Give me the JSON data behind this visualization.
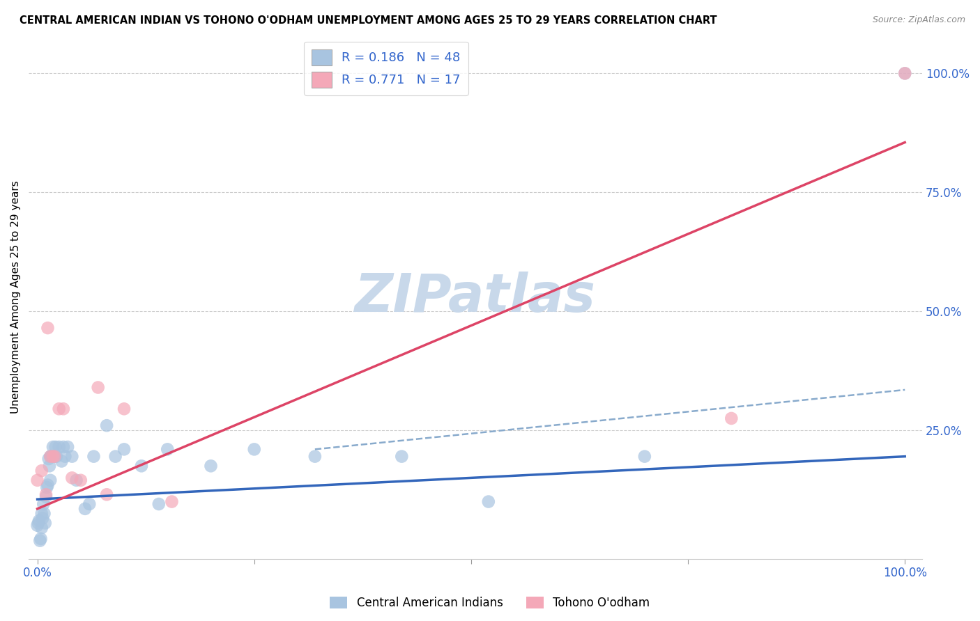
{
  "title": "CENTRAL AMERICAN INDIAN VS TOHONO O'ODHAM UNEMPLOYMENT AMONG AGES 25 TO 29 YEARS CORRELATION CHART",
  "source": "Source: ZipAtlas.com",
  "ylabel": "Unemployment Among Ages 25 to 29 years",
  "ytick_labels": [
    "25.0%",
    "50.0%",
    "75.0%",
    "100.0%"
  ],
  "ytick_values": [
    0.25,
    0.5,
    0.75,
    1.0
  ],
  "legend_label1": "Central American Indians",
  "legend_label2": "Tohono O'odham",
  "r1": "0.186",
  "n1": "48",
  "r2": "0.771",
  "n2": "17",
  "color_blue": "#A8C4E0",
  "color_pink": "#F4A8B8",
  "color_trend_blue": "#3366BB",
  "color_trend_pink": "#DD4466",
  "color_dash": "#88AACC",
  "watermark_color": "#C8D8EA",
  "blue_x": [
    0.0,
    0.001,
    0.002,
    0.003,
    0.004,
    0.005,
    0.005,
    0.006,
    0.007,
    0.008,
    0.009,
    0.01,
    0.011,
    0.012,
    0.013,
    0.014,
    0.015,
    0.015,
    0.016,
    0.017,
    0.018,
    0.019,
    0.02,
    0.021,
    0.022,
    0.025,
    0.028,
    0.03,
    0.032,
    0.035,
    0.04,
    0.045,
    0.055,
    0.06,
    0.065,
    0.08,
    0.09,
    0.1,
    0.12,
    0.14,
    0.15,
    0.2,
    0.25,
    0.32,
    0.42,
    0.52,
    0.7,
    1.0
  ],
  "blue_y": [
    0.05,
    0.055,
    0.06,
    0.018,
    0.022,
    0.045,
    0.075,
    0.065,
    0.095,
    0.075,
    0.055,
    0.11,
    0.13,
    0.135,
    0.19,
    0.175,
    0.145,
    0.195,
    0.195,
    0.195,
    0.215,
    0.195,
    0.195,
    0.215,
    0.195,
    0.215,
    0.185,
    0.215,
    0.195,
    0.215,
    0.195,
    0.145,
    0.085,
    0.095,
    0.195,
    0.26,
    0.195,
    0.21,
    0.175,
    0.095,
    0.21,
    0.175,
    0.21,
    0.195,
    0.195,
    0.1,
    0.195,
    1.0
  ],
  "pink_x": [
    0.0,
    0.005,
    0.01,
    0.012,
    0.015,
    0.018,
    0.02,
    0.025,
    0.03,
    0.04,
    0.05,
    0.07,
    0.08,
    0.1,
    0.155,
    0.8,
    1.0
  ],
  "pink_y": [
    0.145,
    0.165,
    0.115,
    0.465,
    0.195,
    0.195,
    0.195,
    0.295,
    0.295,
    0.15,
    0.145,
    0.34,
    0.115,
    0.295,
    0.1,
    0.275,
    1.0
  ],
  "blue_trend": [
    0.0,
    1.0,
    0.105,
    0.195
  ],
  "blue_dash": [
    0.32,
    1.0,
    0.21,
    0.335
  ],
  "pink_trend": [
    0.0,
    1.0,
    0.085,
    0.855
  ],
  "xlim": [
    -0.01,
    1.02
  ],
  "ylim": [
    -0.02,
    1.08
  ],
  "xtick_positions": [
    0.0,
    0.25,
    0.5,
    0.75,
    1.0
  ],
  "xtick_labels": [
    "0.0%",
    "",
    "",
    "",
    "100.0%"
  ],
  "figsize": [
    14.06,
    8.92
  ],
  "dpi": 100
}
